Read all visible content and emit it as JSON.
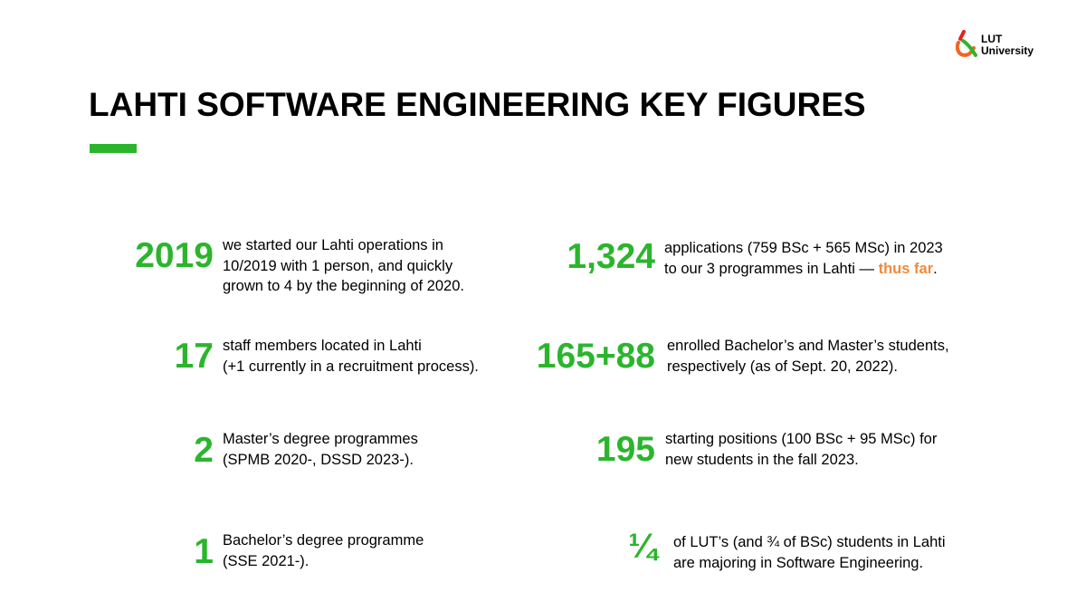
{
  "logo": {
    "line1": "LUT",
    "line2": "University"
  },
  "title": "LAHTI SOFTWARE ENGINEERING KEY FIGURES",
  "colors": {
    "accent": "#2bb52d",
    "highlight": "#f0893d",
    "logo_orange": "#f26522",
    "logo_red": "#e2231a",
    "logo_green": "#2bb52d"
  },
  "figures_left": [
    {
      "value": "2019",
      "lines": [
        "we started our Lahti operations in",
        "10/2019 with 1 person, and quickly",
        "grown to 4 by the beginning  of 2020."
      ]
    },
    {
      "value": "17",
      "lines": [
        "staff members located in Lahti",
        "(+1 currently in a recruitment process)."
      ]
    },
    {
      "value": "2",
      "lines": [
        "Master’s degree programmes",
        "(SPMB 2020-, DSSD 2023-)."
      ]
    },
    {
      "value": "1",
      "lines": [
        "Bachelor’s  degree programme",
        "(SSE 2021-)."
      ]
    }
  ],
  "figures_right": [
    {
      "value": "1,324",
      "lines": [
        "applications (759 BSc + 565 MSc) in 2023",
        "to our 3 programmes in Lahti — "
      ],
      "highlight": "thus far",
      "tail": "."
    },
    {
      "value": "165+88",
      "lines": [
        "enrolled Bachelor’s and Master’s students,",
        "respectively (as of Sept. 20, 2022)."
      ]
    },
    {
      "value": "195",
      "lines": [
        "starting positions (100 BSc + 95 MSc) for",
        "new students in the fall 2023."
      ]
    },
    {
      "value": "¼",
      "lines": [
        "of LUT’s (and ¾ of BSc) students in Lahti",
        "are majoring in Software Engineering."
      ]
    }
  ]
}
